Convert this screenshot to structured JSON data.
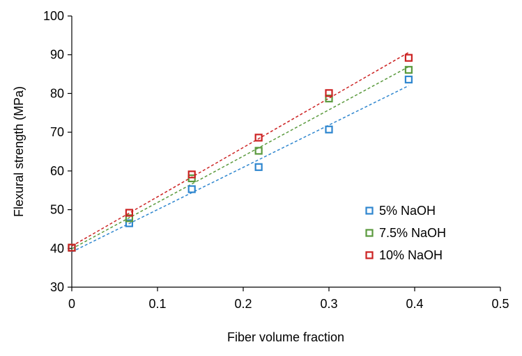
{
  "chart_data": {
    "type": "scatter",
    "title": "",
    "xlabel": "Fiber volume fraction",
    "ylabel": "Flexural strength (MPa)",
    "xlim": [
      0,
      0.5
    ],
    "ylim": [
      30,
      100
    ],
    "xticks": [
      "0",
      "0.1",
      "0.2",
      "0.3",
      "0.4",
      "0.5"
    ],
    "yticks": [
      "30",
      "40",
      "50",
      "60",
      "70",
      "80",
      "90",
      "100"
    ],
    "grid": false,
    "legend_position": "bottom-right",
    "trendlines": "linear, dashed",
    "series": [
      {
        "name": "5% NaOH",
        "color": "#2E86CF",
        "x": [
          0,
          0.067,
          0.14,
          0.218,
          0.3,
          0.393
        ],
        "y": [
          40.2,
          46.5,
          55.3,
          61.0,
          70.7,
          83.6
        ],
        "trend": [
          [
            0,
            39.1
          ],
          [
            0.393,
            82.0
          ]
        ]
      },
      {
        "name": "7.5% NaOH",
        "color": "#5B9A3E",
        "x": [
          0,
          0.067,
          0.14,
          0.218,
          0.3,
          0.393
        ],
        "y": [
          40.2,
          47.8,
          58.1,
          65.2,
          78.7,
          86.1
        ],
        "trend": [
          [
            0,
            39.9
          ],
          [
            0.393,
            86.9
          ]
        ]
      },
      {
        "name": "10% NaOH",
        "color": "#CC2222",
        "x": [
          0,
          0.067,
          0.14,
          0.218,
          0.3,
          0.393
        ],
        "y": [
          40.2,
          49.2,
          59.1,
          68.6,
          80.1,
          89.2
        ],
        "trend": [
          [
            0,
            40.6
          ],
          [
            0.393,
            90.6
          ]
        ]
      }
    ]
  }
}
